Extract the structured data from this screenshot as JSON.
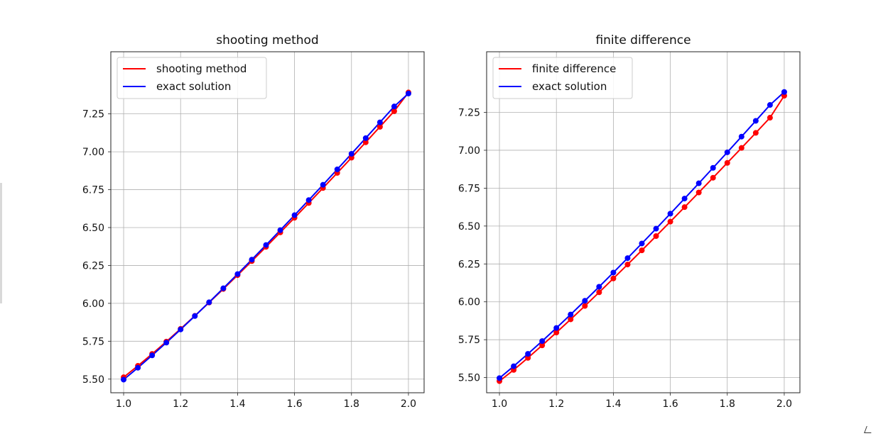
{
  "chart_data": [
    {
      "type": "line",
      "title": "shooting method",
      "xlabel": "",
      "ylabel": "",
      "xlim": [
        0.955,
        2.055
      ],
      "ylim": [
        5.41,
        7.66
      ],
      "xticks": [
        1.0,
        1.2,
        1.4,
        1.6,
        1.8,
        2.0
      ],
      "xtick_labels": [
        "1.0",
        "1.2",
        "1.4",
        "1.6",
        "1.8",
        "2.0"
      ],
      "yticks": [
        5.5,
        5.75,
        6.0,
        6.25,
        6.5,
        6.75,
        7.0,
        7.25
      ],
      "ytick_labels": [
        "5.50",
        "5.75",
        "6.00",
        "6.25",
        "6.50",
        "6.75",
        "7.00",
        "7.25"
      ],
      "grid": true,
      "legend": "upper left",
      "x": [
        1.0,
        1.05,
        1.1,
        1.15,
        1.2,
        1.25,
        1.3,
        1.35,
        1.4,
        1.45,
        1.5,
        1.55,
        1.6,
        1.65,
        1.7,
        1.75,
        1.8,
        1.85,
        1.9,
        1.95,
        2.0
      ],
      "series": [
        {
          "name": "shooting method",
          "color": "#ff0000",
          "values": [
            5.5122,
            5.5876,
            5.6663,
            5.7476,
            5.8314,
            5.9173,
            6.0051,
            6.0948,
            6.186,
            6.2787,
            6.3728,
            6.4681,
            6.5647,
            6.6623,
            6.761,
            6.8606,
            6.9612,
            7.0626,
            7.1648,
            7.2678,
            7.3915
          ]
        },
        {
          "name": "exact solution",
          "color": "#0000ff",
          "values": [
            5.4967,
            5.5751,
            5.6567,
            5.741,
            5.8276,
            5.9163,
            6.0069,
            6.0993,
            6.1931,
            6.2884,
            6.3849,
            6.4827,
            6.5815,
            6.6814,
            6.7822,
            6.884,
            6.9866,
            7.09,
            7.1941,
            7.299,
            7.3845
          ]
        }
      ]
    },
    {
      "type": "line",
      "title": "finite difference",
      "xlabel": "",
      "ylabel": "",
      "xlim": [
        0.955,
        2.055
      ],
      "ylim": [
        5.4,
        7.65
      ],
      "xticks": [
        1.0,
        1.2,
        1.4,
        1.6,
        1.8,
        2.0
      ],
      "xtick_labels": [
        "1.0",
        "1.2",
        "1.4",
        "1.6",
        "1.8",
        "2.0"
      ],
      "yticks": [
        5.5,
        5.75,
        6.0,
        6.25,
        6.5,
        6.75,
        7.0,
        7.25
      ],
      "ytick_labels": [
        "5.50",
        "5.75",
        "6.00",
        "6.25",
        "6.50",
        "6.75",
        "7.00",
        "7.25"
      ],
      "grid": true,
      "legend": "upper left",
      "x": [
        1.0,
        1.05,
        1.1,
        1.15,
        1.2,
        1.25,
        1.3,
        1.35,
        1.4,
        1.45,
        1.5,
        1.55,
        1.6,
        1.65,
        1.7,
        1.75,
        1.8,
        1.85,
        1.9,
        1.95,
        2.0
      ],
      "series": [
        {
          "name": "finite difference",
          "color": "#ff0000",
          "values": [
            5.4767,
            5.5507,
            5.6302,
            5.7126,
            5.7974,
            5.8843,
            5.9728,
            6.0628,
            6.154,
            6.2463,
            6.3396,
            6.4338,
            6.5289,
            6.6248,
            6.7214,
            6.8188,
            6.9168,
            7.0155,
            7.1148,
            7.2148,
            7.36
          ]
        },
        {
          "name": "exact solution",
          "color": "#0000ff",
          "values": [
            5.4967,
            5.5751,
            5.6567,
            5.741,
            5.8276,
            5.9163,
            6.0069,
            6.0993,
            6.1931,
            6.2884,
            6.3849,
            6.4827,
            6.5815,
            6.6814,
            6.7822,
            6.884,
            6.9866,
            7.09,
            7.1941,
            7.299,
            7.3845
          ]
        }
      ]
    }
  ]
}
